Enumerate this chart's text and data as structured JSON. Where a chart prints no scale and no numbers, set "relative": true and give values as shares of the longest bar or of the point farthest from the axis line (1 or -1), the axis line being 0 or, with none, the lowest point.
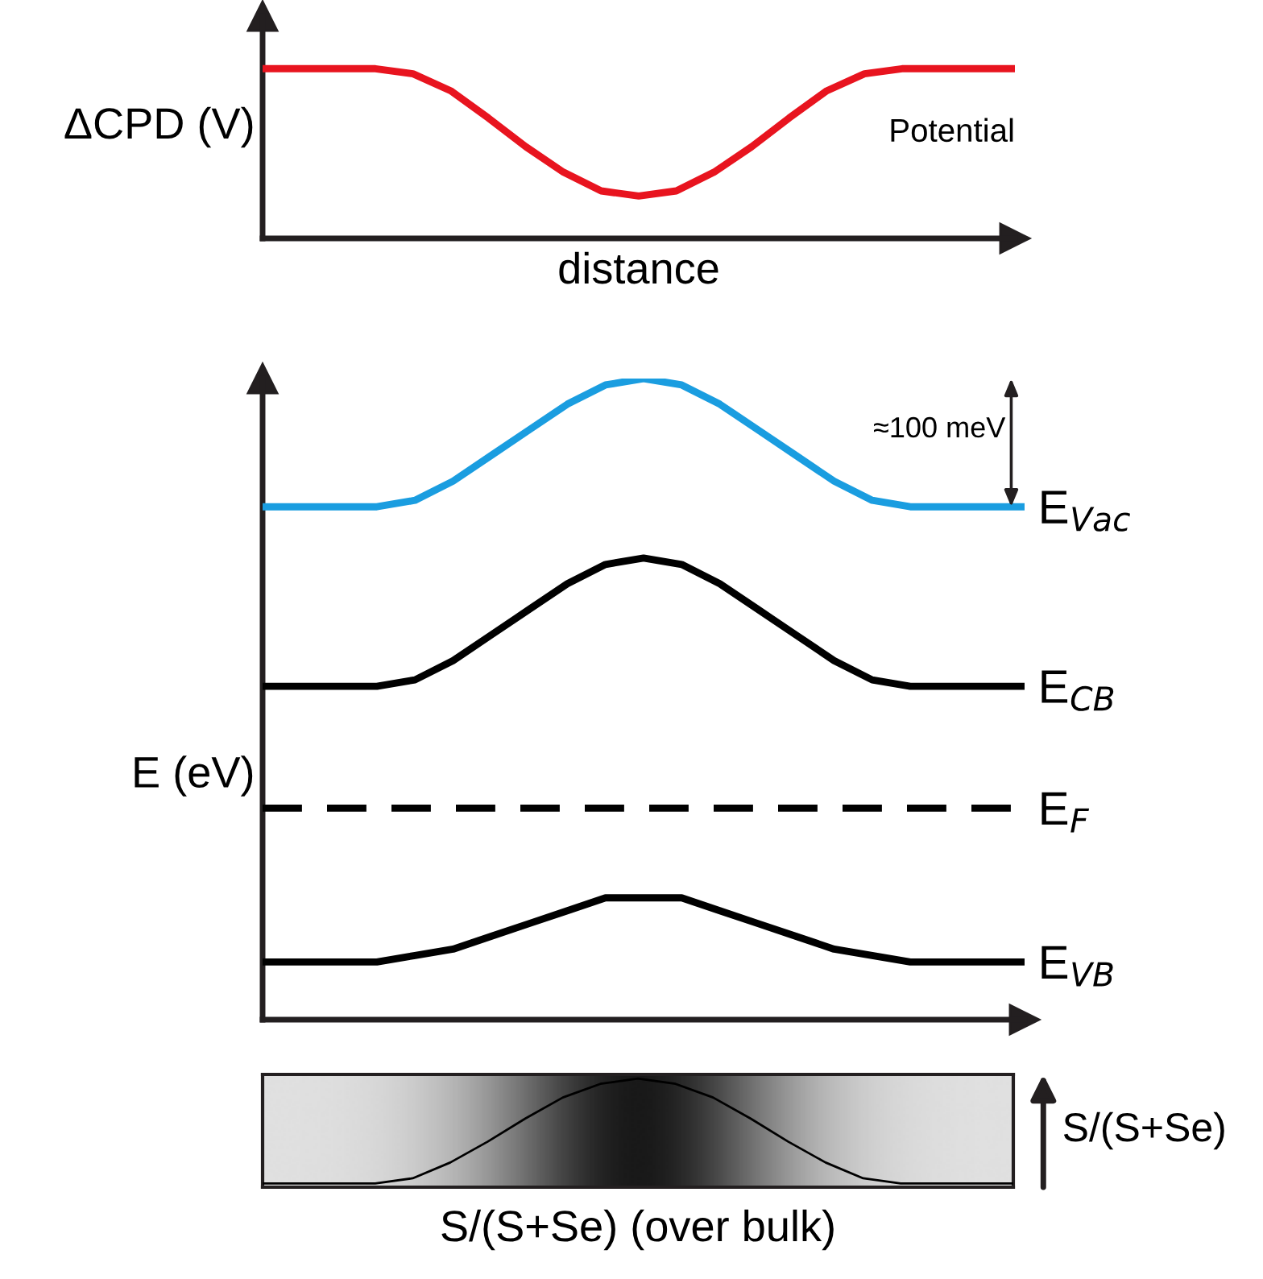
{
  "chart_data": [
    {
      "type": "line",
      "relative": true,
      "tick_labels": false,
      "ylabel": "ΔCPD (V)",
      "xlabel": "distance",
      "marker": "none",
      "categories": [
        null,
        null,
        null,
        null,
        null,
        null,
        null,
        null,
        null,
        null,
        null,
        null,
        null,
        null,
        null,
        null,
        null,
        null,
        null,
        null,
        null
      ],
      "series": [
        {
          "name": "Potential",
          "color": "#e8141f",
          "line_style": "solid",
          "values": [
            1,
            1,
            1,
            1,
            0.97,
            0.87,
            0.71,
            0.54,
            0.39,
            0.28,
            0.25,
            0.28,
            0.39,
            0.54,
            0.71,
            0.87,
            0.97,
            1,
            1,
            1,
            1
          ]
        }
      ]
    },
    {
      "type": "line",
      "relative": true,
      "tick_labels": false,
      "ylabel": "E (eV)",
      "marker": "none",
      "annotations": [
        "≈100 meV"
      ],
      "categories": [
        null,
        null,
        null,
        null,
        null,
        null,
        null,
        null,
        null,
        null,
        null,
        null,
        null,
        null,
        null,
        null,
        null,
        null,
        null,
        null,
        null
      ],
      "series": [
        {
          "name": "E$_{Vac}$",
          "color": "#1a9de0",
          "line_style": "solid",
          "values": [
            0.8,
            0.8,
            0.8,
            0.8,
            0.81,
            0.84,
            0.88,
            0.92,
            0.96,
            0.99,
            1,
            0.99,
            0.96,
            0.92,
            0.88,
            0.84,
            0.81,
            0.8,
            0.8,
            0.8,
            0.8
          ]
        },
        {
          "name": "E$_{CB}$",
          "color": "#000000",
          "line_style": "solid",
          "values": [
            0.52,
            0.52,
            0.52,
            0.52,
            0.53,
            0.56,
            0.6,
            0.64,
            0.68,
            0.71,
            0.72,
            0.71,
            0.68,
            0.64,
            0.6,
            0.56,
            0.53,
            0.52,
            0.52,
            0.52,
            0.52
          ]
        },
        {
          "name": "E$_{F}$",
          "color": "#000000",
          "line_style": "dashed",
          "values": [
            0.33,
            0.33,
            0.33,
            0.33,
            0.33,
            0.33,
            0.33,
            0.33,
            0.33,
            0.33,
            0.33,
            0.33,
            0.33,
            0.33,
            0.33,
            0.33,
            0.33,
            0.33,
            0.33,
            0.33,
            0.33
          ]
        },
        {
          "name": "E$_{VB}$",
          "color": "#000000",
          "line_style": "solid",
          "values": [
            0.09,
            0.09,
            0.09,
            0.09,
            0.1,
            0.11,
            0.13,
            0.15,
            0.17,
            0.19,
            0.19,
            0.19,
            0.17,
            0.15,
            0.13,
            0.11,
            0.1,
            0.09,
            0.09,
            0.09,
            0.09
          ]
        }
      ]
    },
    {
      "type": "line",
      "relative": true,
      "tick_labels": false,
      "xlabel": "S/(S+Se) (over bulk)",
      "ylabel": "S/(S+Se)",
      "marker": "none",
      "categories": [
        null,
        null,
        null,
        null,
        null,
        null,
        null,
        null,
        null,
        null,
        null,
        null,
        null,
        null,
        null,
        null,
        null,
        null,
        null,
        null,
        null
      ],
      "series": [
        {
          "color": "#000000",
          "line_style": "solid",
          "values": [
            0,
            0,
            0,
            0,
            0.05,
            0.2,
            0.4,
            0.62,
            0.82,
            0.95,
            1,
            0.95,
            0.82,
            0.62,
            0.4,
            0.2,
            0.05,
            0,
            0,
            0,
            0
          ]
        }
      ]
    }
  ]
}
